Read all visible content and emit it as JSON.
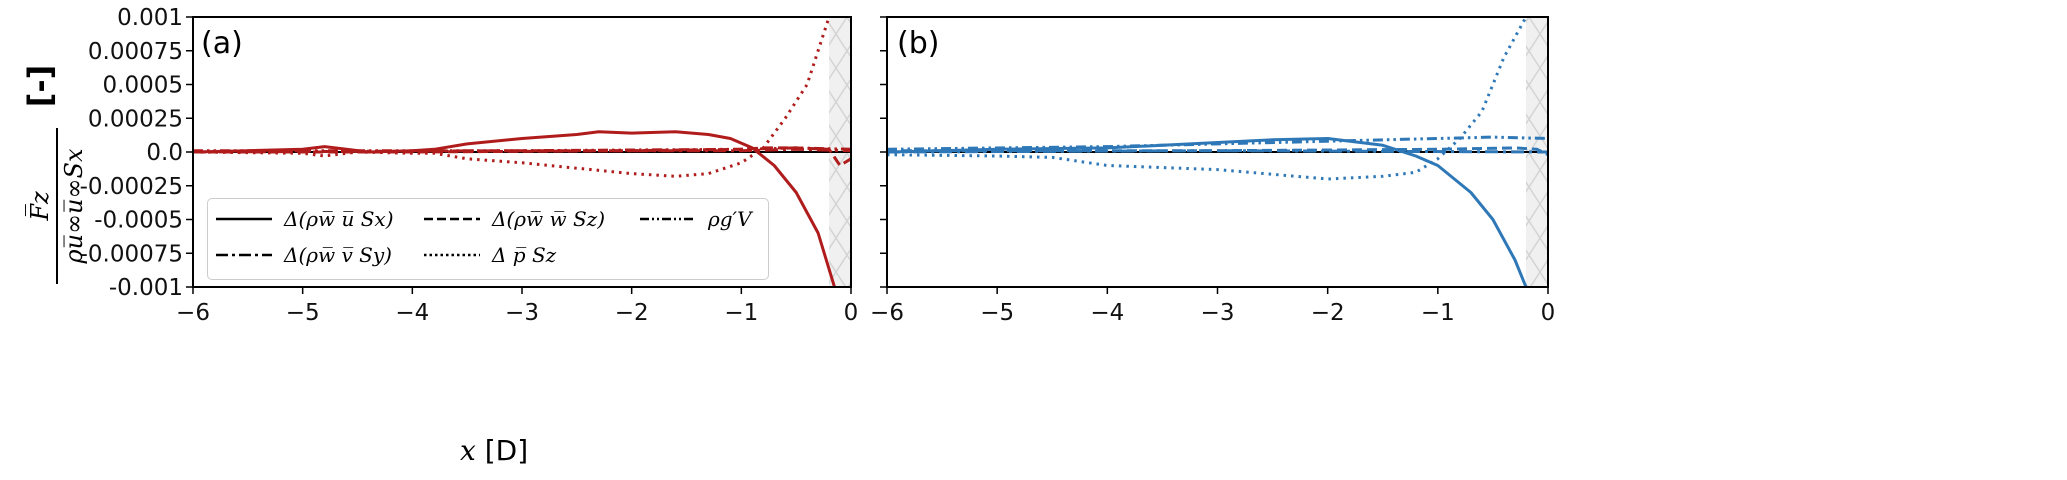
{
  "chart_data": [
    {
      "type": "line",
      "panel_label": "(a)",
      "color": "#b01c1c",
      "xlim": [
        -6,
        0
      ],
      "ylim": [
        -0.001,
        0.001
      ],
      "hatched_region": [
        -0.2,
        0
      ],
      "series": [
        {
          "name": "solid",
          "style": "solid",
          "x": [
            -6,
            -5.5,
            -5,
            -4.8,
            -4.6,
            -4.4,
            -4,
            -3.8,
            -3.5,
            -3,
            -2.5,
            -2.3,
            -2,
            -1.6,
            -1.3,
            -1.1,
            -0.9,
            -0.7,
            -0.5,
            -0.3,
            -0.15
          ],
          "y": [
            0,
            1e-05,
            2e-05,
            4e-05,
            2e-05,
            0,
            1e-05,
            2e-05,
            6e-05,
            0.0001,
            0.00013,
            0.00015,
            0.00014,
            0.00015,
            0.00013,
            0.0001,
            3e-05,
            -0.0001,
            -0.0003,
            -0.0006,
            -0.001
          ]
        },
        {
          "name": "dashed",
          "style": "dashed",
          "x": [
            -6,
            -4,
            -2,
            -1,
            -0.8,
            -0.5,
            -0.2,
            -0.1,
            0
          ],
          "y": [
            0,
            0,
            1e-05,
            2e-05,
            3e-05,
            3e-05,
            2e-05,
            -0.0001,
            -5e-05
          ]
        },
        {
          "name": "dashdot",
          "style": "dashdot",
          "x": [
            -6,
            -3,
            -1,
            -0.5,
            0
          ],
          "y": [
            0,
            1e-05,
            1e-05,
            2e-05,
            1e-05
          ]
        },
        {
          "name": "dotted",
          "style": "dotted",
          "x": [
            -6,
            -5,
            -4.8,
            -4.5,
            -4,
            -3.8,
            -3.5,
            -3,
            -2.5,
            -2,
            -1.6,
            -1.3,
            -1,
            -0.8,
            -0.6,
            -0.4,
            -0.2
          ],
          "y": [
            0,
            -1e-05,
            -3e-05,
            0,
            -1e-05,
            -1e-05,
            -5e-05,
            -8e-05,
            -0.00012,
            -0.00016,
            -0.00018,
            -0.00016,
            -8e-05,
            3e-05,
            0.00025,
            0.0005,
            0.001
          ]
        },
        {
          "name": "dashdotdot",
          "style": "dashdotdot",
          "x": [
            -6,
            -3,
            -1,
            -0.5,
            0
          ],
          "y": [
            1e-05,
            1e-05,
            2e-05,
            3e-05,
            2e-05
          ]
        }
      ]
    },
    {
      "type": "line",
      "panel_label": "(b)",
      "color": "#2f78b8",
      "xlim": [
        -6,
        0
      ],
      "ylim": [
        -0.001,
        0.001
      ],
      "hatched_region": [
        -0.2,
        0
      ],
      "series": [
        {
          "name": "solid",
          "style": "solid",
          "x": [
            -6,
            -5,
            -4,
            -3.5,
            -3,
            -2.5,
            -2,
            -1.5,
            -1.2,
            -1,
            -0.7,
            -0.5,
            -0.3,
            -0.2
          ],
          "y": [
            0,
            2e-05,
            3e-05,
            5e-05,
            7e-05,
            9e-05,
            0.0001,
            5e-05,
            -3e-05,
            -0.0001,
            -0.0003,
            -0.0005,
            -0.0008,
            -0.001
          ]
        },
        {
          "name": "dashed",
          "style": "dashed",
          "x": [
            -6,
            -3,
            -1,
            -0.3,
            -0.1,
            0
          ],
          "y": [
            1e-05,
            1e-05,
            2e-05,
            3e-05,
            2e-05,
            -2e-05
          ]
        },
        {
          "name": "dashdot",
          "style": "dashdot",
          "x": [
            -6,
            -3,
            0
          ],
          "y": [
            0,
            1e-05,
            0
          ]
        },
        {
          "name": "dotted",
          "style": "dotted",
          "x": [
            -6,
            -5,
            -4.5,
            -4,
            -3,
            -2,
            -1.5,
            -1.2,
            -1,
            -0.8,
            -0.6,
            -0.4,
            -0.2
          ],
          "y": [
            -2e-05,
            -3e-05,
            -4e-05,
            -0.0001,
            -0.00013,
            -0.0002,
            -0.00018,
            -0.00015,
            -5e-05,
            0.0001,
            0.0003,
            0.0007,
            0.001
          ]
        },
        {
          "name": "dashdotdot",
          "style": "dashdotdot",
          "x": [
            -6,
            -4,
            -3,
            -2,
            -1,
            -0.5,
            0
          ],
          "y": [
            2e-05,
            4e-05,
            6e-05,
            8e-05,
            0.0001,
            0.00011,
            0.0001
          ]
        }
      ]
    }
  ],
  "axes": {
    "xticks": [
      "−6",
      "−5",
      "−4",
      "−3",
      "−2",
      "−1",
      "0"
    ],
    "yticks": [
      "0.001",
      "0.00075",
      "0.0005",
      "0.00025",
      "0.0",
      "-0.00025",
      "-0.0005",
      "-0.00075",
      "-0.001"
    ],
    "xlabel_var": "x",
    "xlabel_unit": "[D]",
    "ylabel_num": "F̅z",
    "ylabel_den": "ρu̅∞u̅∞Sx",
    "ylabel_unit": "[-]"
  },
  "legend": [
    {
      "style": "solid",
      "label": "Δ(ρw̅ u̅ Sx)"
    },
    {
      "style": "dashed",
      "label": "Δ(ρw̅ w̅ Sz)"
    },
    {
      "style": "dashdotdot",
      "label": "ρg′V"
    },
    {
      "style": "dashdot",
      "label": "Δ(ρw̅ v̅ Sy)"
    },
    {
      "style": "dotted",
      "label": "Δ p̅ Sz"
    }
  ]
}
